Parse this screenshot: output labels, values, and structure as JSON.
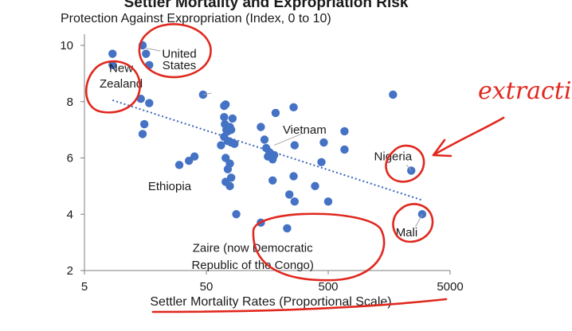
{
  "chart_data": {
    "type": "scatter",
    "title": "Settler Mortality and Expropriation Risk",
    "subtitle": "Protection Against Expropriation (Index, 0 to 10)",
    "xlabel": "Settler Mortality Rates (Proportional Scale)",
    "ylabel": "",
    "x_scale": "log",
    "xlim": [
      5,
      5000
    ],
    "ylim": [
      2,
      10
    ],
    "x_ticks": [
      "5",
      "50",
      "500",
      "5000"
    ],
    "y_ticks": [
      "2",
      "4",
      "6",
      "8",
      "10"
    ],
    "grid": false,
    "color": "#4472c4",
    "trend_color": "#3a66b8",
    "points": [
      {
        "x": 8.5,
        "y": 9.7
      },
      {
        "x": 8.5,
        "y": 9.3
      },
      {
        "x": 15,
        "y": 10.0
      },
      {
        "x": 16,
        "y": 9.7
      },
      {
        "x": 17,
        "y": 9.3
      },
      {
        "x": 14.5,
        "y": 8.1
      },
      {
        "x": 17,
        "y": 7.95
      },
      {
        "x": 47,
        "y": 8.25
      },
      {
        "x": 15.5,
        "y": 7.2
      },
      {
        "x": 15,
        "y": 6.85
      },
      {
        "x": 30,
        "y": 5.75
      },
      {
        "x": 36,
        "y": 5.9
      },
      {
        "x": 40,
        "y": 6.05
      },
      {
        "x": 70,
        "y": 7.85
      },
      {
        "x": 72,
        "y": 7.9
      },
      {
        "x": 70,
        "y": 7.45
      },
      {
        "x": 71,
        "y": 7.2
      },
      {
        "x": 73,
        "y": 7.0
      },
      {
        "x": 75,
        "y": 6.95
      },
      {
        "x": 78,
        "y": 7.1
      },
      {
        "x": 80,
        "y": 7.0
      },
      {
        "x": 82,
        "y": 7.4
      },
      {
        "x": 70,
        "y": 6.75
      },
      {
        "x": 75,
        "y": 6.6
      },
      {
        "x": 66,
        "y": 6.45
      },
      {
        "x": 80,
        "y": 6.55
      },
      {
        "x": 85,
        "y": 6.5
      },
      {
        "x": 72,
        "y": 6.0
      },
      {
        "x": 78,
        "y": 5.8
      },
      {
        "x": 75,
        "y": 5.6
      },
      {
        "x": 80,
        "y": 5.3
      },
      {
        "x": 72,
        "y": 5.15
      },
      {
        "x": 78,
        "y": 5.0
      },
      {
        "x": 88,
        "y": 4.0
      },
      {
        "x": 140,
        "y": 7.1
      },
      {
        "x": 150,
        "y": 6.65
      },
      {
        "x": 155,
        "y": 6.35
      },
      {
        "x": 165,
        "y": 6.2
      },
      {
        "x": 160,
        "y": 6.05
      },
      {
        "x": 175,
        "y": 5.95
      },
      {
        "x": 180,
        "y": 6.1
      },
      {
        "x": 185,
        "y": 7.6
      },
      {
        "x": 175,
        "y": 5.2
      },
      {
        "x": 140,
        "y": 3.7
      },
      {
        "x": 260,
        "y": 7.8
      },
      {
        "x": 265,
        "y": 6.45
      },
      {
        "x": 260,
        "y": 5.35
      },
      {
        "x": 240,
        "y": 4.7
      },
      {
        "x": 265,
        "y": 4.45
      },
      {
        "x": 460,
        "y": 6.55
      },
      {
        "x": 440,
        "y": 5.85
      },
      {
        "x": 390,
        "y": 5.0
      },
      {
        "x": 500,
        "y": 4.45
      },
      {
        "x": 680,
        "y": 6.95
      },
      {
        "x": 680,
        "y": 6.3
      },
      {
        "x": 1700,
        "y": 8.25
      },
      {
        "x": 2400,
        "y": 5.55
      },
      {
        "x": 2950,
        "y": 4.0
      },
      {
        "x": 230,
        "y": 3.5
      }
    ],
    "trendline": {
      "x": [
        8.5,
        2950
      ],
      "y": [
        8.05,
        4.5
      ]
    },
    "annotations": [
      {
        "text": "United",
        "x": 30,
        "y": 9.7
      },
      {
        "text": "States",
        "x": 30,
        "y": 9.3
      },
      {
        "text": "New",
        "x": 10,
        "y": 9.2
      },
      {
        "text": "Zealand",
        "x": 10,
        "y": 8.65
      },
      {
        "text": "Vietnam",
        "x": 320,
        "y": 7.0
      },
      {
        "text": "Nigeria",
        "x": 1700,
        "y": 6.05
      },
      {
        "text": "Ethiopia",
        "x": 25,
        "y": 5.0
      },
      {
        "text": "Mali",
        "x": 2200,
        "y": 3.35
      },
      {
        "text": "Zaire (now Democratic",
        "x": 120,
        "y": 2.8
      },
      {
        "text": "Republic of the Congo)",
        "x": 120,
        "y": 2.2
      }
    ]
  },
  "handwriting": {
    "text": "extractive"
  }
}
